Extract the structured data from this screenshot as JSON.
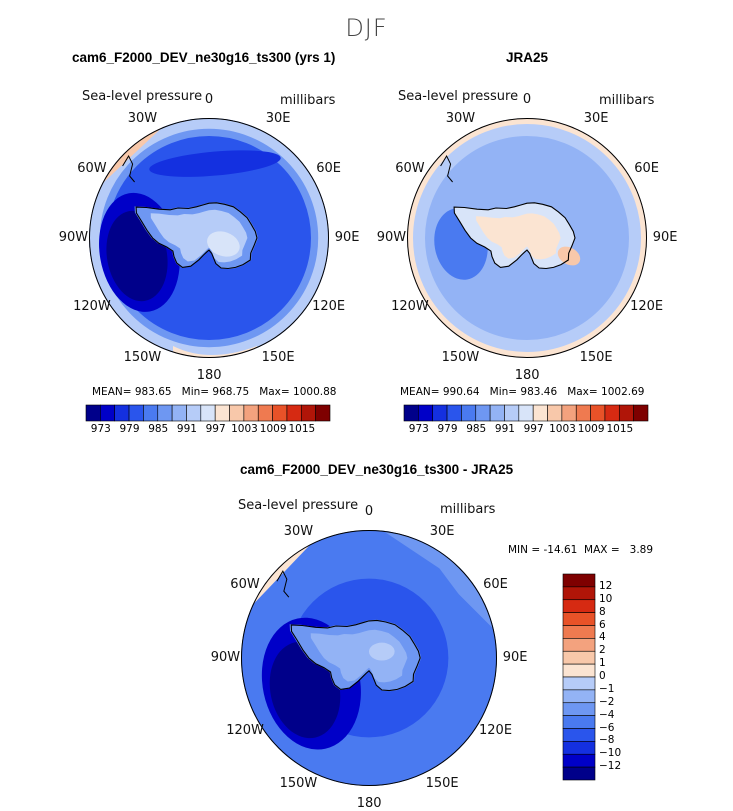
{
  "figure": {
    "title": "DJF",
    "difference_title": "cam6_F2000_DEV_ne30g16_ts300 - JRA25"
  },
  "colors": {
    "abs_levels": [
      "#00008a",
      "#0000c8",
      "#1430e0",
      "#2a55ec",
      "#4a7af0",
      "#6e97f2",
      "#93b3f5",
      "#b6ccf8",
      "#d8e4f9",
      "#fbe4d2",
      "#f8c8aa",
      "#f3a27e",
      "#ef7a50",
      "#e85228",
      "#d62a12",
      "#b01508",
      "#7e0000"
    ],
    "diff_levels": [
      "#00008a",
      "#0000c8",
      "#1430e0",
      "#2a55ec",
      "#4a7af0",
      "#6e97f2",
      "#93b3f5",
      "#b6ccf8",
      "#ffffff",
      "#fbe4d2",
      "#f8c8aa",
      "#f3a27e",
      "#ef7a50",
      "#e85228",
      "#d62a12",
      "#b01508",
      "#7e0000"
    ],
    "continent_outline": "#000000"
  },
  "panels": [
    {
      "id": "model",
      "title": "cam6_F2000_DEV_ne30g16_ts300 (yrs 1)",
      "variable": "Sea-level pressure",
      "units": "millibars",
      "lon_labels": [
        "0",
        "30E",
        "60E",
        "90E",
        "120E",
        "150E",
        "180",
        "150W",
        "120W",
        "90W",
        "60W",
        "30W"
      ],
      "stats": {
        "mean_label": "MEAN=",
        "mean": "983.65",
        "min_label": "Min=",
        "min": "968.75",
        "max_label": "Max=",
        "max": "1000.88"
      },
      "colorbar_ticks": [
        "973",
        "979",
        "985",
        "991",
        "997",
        "1003",
        "1009",
        "1015"
      ]
    },
    {
      "id": "obs",
      "title": "JRA25",
      "variable": "Sea-level pressure",
      "units": "millibars",
      "lon_labels": [
        "0",
        "30E",
        "60E",
        "90E",
        "120E",
        "150E",
        "180",
        "150W",
        "120W",
        "90W",
        "60W",
        "30W"
      ],
      "stats": {
        "mean_label": "MEAN=",
        "mean": "990.64",
        "min_label": "Min=",
        "min": "983.46",
        "max_label": "Max=",
        "max": "1002.69"
      },
      "colorbar_ticks": [
        "973",
        "979",
        "985",
        "991",
        "997",
        "1003",
        "1009",
        "1015"
      ]
    },
    {
      "id": "diff",
      "title": "cam6_F2000_DEV_ne30g16_ts300 - JRA25",
      "variable": "Sea-level pressure",
      "units": "millibars",
      "lon_labels": [
        "0",
        "30E",
        "60E",
        "90E",
        "120E",
        "150E",
        "180",
        "150W",
        "120W",
        "90W",
        "60W",
        "30W"
      ],
      "stats": {
        "min_label": "MIN =",
        "min": "-14.61",
        "max_label": "MAX =",
        "max": "3.89"
      },
      "colorbar_ticks": [
        "12",
        "10",
        "8",
        "6",
        "4",
        "2",
        "1",
        "0",
        "−1",
        "−2",
        "−4",
        "−6",
        "−8",
        "−10",
        "−12"
      ]
    }
  ]
}
